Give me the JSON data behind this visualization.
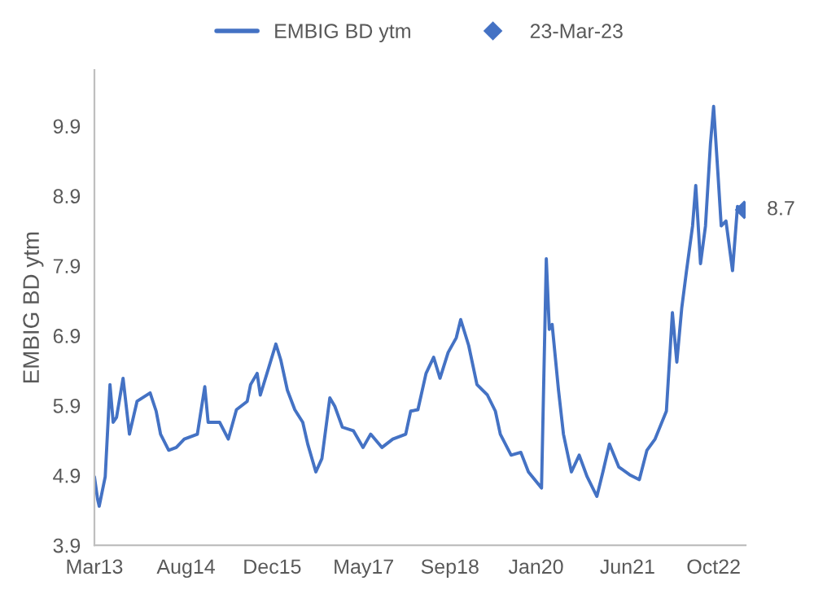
{
  "chart_data": {
    "type": "line",
    "ylabel": "EMBIG BD ytm",
    "legend": "top",
    "ylim": [
      3.9,
      10.7
    ],
    "yticks": [
      3.9,
      4.9,
      5.9,
      6.9,
      7.9,
      8.9,
      9.9
    ],
    "xlim": [
      "2013-03-01",
      "2023-03-31"
    ],
    "xticks": [
      {
        "value": "2013-03-01",
        "label": "Mar13"
      },
      {
        "value": "2014-08-01",
        "label": "Aug14"
      },
      {
        "value": "2015-12-01",
        "label": "Dec15"
      },
      {
        "value": "2017-05-01",
        "label": "May17"
      },
      {
        "value": "2018-09-01",
        "label": "Sep18"
      },
      {
        "value": "2020-01-01",
        "label": "Jan20"
      },
      {
        "value": "2021-06-01",
        "label": "Jun21"
      },
      {
        "value": "2022-10-01",
        "label": "Oct22"
      }
    ],
    "series": [
      {
        "name": "EMBIG BD ytm",
        "color": "#4472c4",
        "marker": "none",
        "x": [
          "2013-03-01",
          "2013-03-19",
          "2013-03-28",
          "2013-05-01",
          "2013-05-28",
          "2013-06-15",
          "2013-07-04",
          "2013-08-10",
          "2013-09-15",
          "2013-10-28",
          "2014-01-10",
          "2014-02-13",
          "2014-03-10",
          "2014-04-25",
          "2014-06-07",
          "2014-07-22",
          "2014-10-04",
          "2014-11-15",
          "2014-12-04",
          "2015-02-07",
          "2015-03-28",
          "2015-05-13",
          "2015-07-13",
          "2015-08-01",
          "2015-09-07",
          "2015-09-25",
          "2015-11-10",
          "2015-12-22",
          "2016-01-19",
          "2016-02-25",
          "2016-04-07",
          "2016-05-22",
          "2016-06-19",
          "2016-08-04",
          "2016-09-07",
          "2016-10-22",
          "2016-11-19",
          "2017-01-01",
          "2017-03-04",
          "2017-04-28",
          "2017-06-10",
          "2017-08-13",
          "2017-10-13",
          "2017-12-25",
          "2018-01-22",
          "2018-03-04",
          "2018-04-19",
          "2018-06-01",
          "2018-07-07",
          "2018-08-22",
          "2018-10-07",
          "2018-11-01",
          "2018-12-16",
          "2019-02-01",
          "2019-04-01",
          "2019-05-16",
          "2019-06-13",
          "2019-08-13",
          "2019-10-07",
          "2019-11-19",
          "2020-02-01",
          "2020-02-28",
          "2020-03-16",
          "2020-04-01",
          "2020-05-07",
          "2020-06-04",
          "2020-07-19",
          "2020-09-01",
          "2020-10-16",
          "2020-12-10",
          "2021-01-13",
          "2021-02-19",
          "2021-04-13",
          "2021-06-13",
          "2021-08-07",
          "2021-09-19",
          "2021-11-04",
          "2022-01-07",
          "2022-02-10",
          "2022-03-07",
          "2022-04-04",
          "2022-05-01",
          "2022-06-04",
          "2022-06-22",
          "2022-07-19",
          "2022-08-16",
          "2022-09-13",
          "2022-10-01",
          "2022-10-25",
          "2022-11-13",
          "2022-12-10",
          "2023-01-16",
          "2023-02-13",
          "2023-03-23"
        ],
        "values": [
          4.88,
          4.56,
          4.46,
          4.88,
          6.2,
          5.66,
          5.73,
          6.29,
          5.49,
          5.96,
          6.08,
          5.82,
          5.49,
          5.26,
          5.3,
          5.42,
          5.49,
          6.17,
          5.66,
          5.66,
          5.42,
          5.84,
          5.96,
          6.2,
          6.36,
          6.05,
          6.43,
          6.78,
          6.55,
          6.12,
          5.84,
          5.66,
          5.35,
          4.95,
          5.14,
          6.01,
          5.89,
          5.59,
          5.54,
          5.3,
          5.49,
          5.3,
          5.42,
          5.49,
          5.82,
          5.84,
          6.36,
          6.59,
          6.29,
          6.66,
          6.87,
          7.13,
          6.76,
          6.2,
          6.05,
          5.82,
          5.49,
          5.19,
          5.23,
          4.95,
          4.72,
          8.0,
          6.99,
          7.06,
          6.12,
          5.49,
          4.95,
          5.19,
          4.88,
          4.6,
          4.95,
          5.35,
          5.02,
          4.91,
          4.84,
          5.26,
          5.42,
          5.82,
          7.23,
          6.52,
          7.3,
          7.83,
          8.47,
          9.05,
          7.93,
          8.47,
          9.64,
          10.18,
          9.24,
          8.47,
          8.54,
          7.83,
          8.75,
          8.7
        ]
      },
      {
        "type": "scatter",
        "name": "23-Mar-23",
        "color": "#4472c4",
        "marker": "diamond",
        "x": [
          "2023-03-23"
        ],
        "values": [
          8.7
        ],
        "value_labels": [
          "8.7"
        ]
      }
    ]
  }
}
